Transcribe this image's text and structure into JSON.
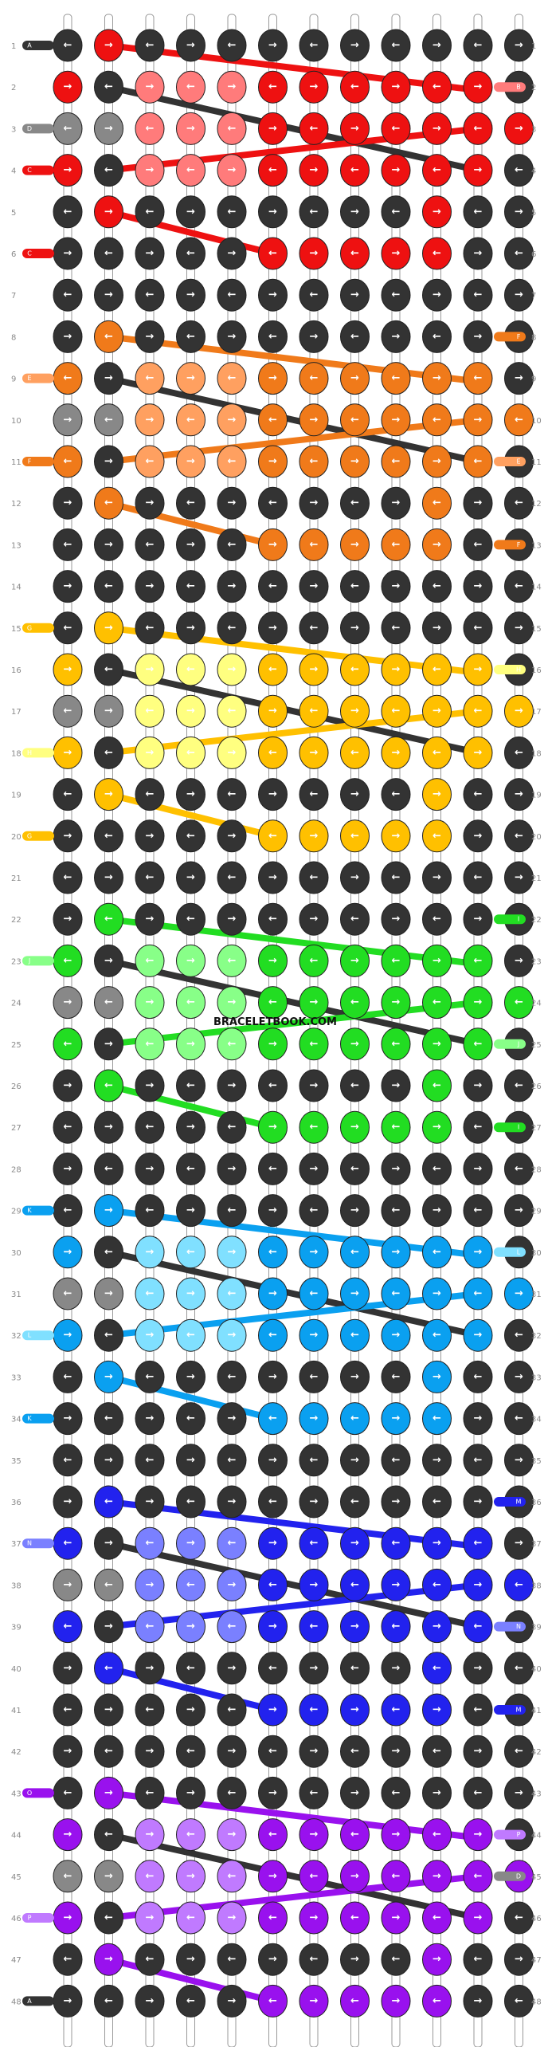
{
  "watermark": "BRACELETBOOK.COM",
  "arrow_glyphs": {
    "right": "→",
    "left": "←"
  },
  "colors": {
    "background": "#333333",
    "strand_grey": "#888888",
    "red": "#ee1111",
    "salmon": "#ff7b7b",
    "orange": "#f07a1a",
    "light_orange": "#ffa060",
    "gold": "#ffc000",
    "light_yellow": "#ffff80",
    "green": "#22dd22",
    "light_green": "#88ff88",
    "blue": "#0aa0f0",
    "light_blue": "#80e0ff",
    "royal_blue": "#2222ee",
    "periwinkle": "#7a80ff",
    "purple": "#9911ee",
    "lavender": "#c07aff"
  },
  "strands": [
    {
      "letter": "A",
      "color": "background"
    },
    {
      "letter": "B",
      "color": "salmon"
    },
    {
      "letter": "C",
      "color": "red"
    },
    {
      "letter": "D",
      "color": "strand_grey"
    },
    {
      "letter": "E",
      "color": "light_orange"
    },
    {
      "letter": "F",
      "color": "orange"
    },
    {
      "letter": "G",
      "color": "gold"
    },
    {
      "letter": "H",
      "color": "light_yellow"
    },
    {
      "letter": "I",
      "color": "green"
    },
    {
      "letter": "J",
      "color": "light_green"
    },
    {
      "letter": "K",
      "color": "blue"
    },
    {
      "letter": "L",
      "color": "light_blue"
    },
    {
      "letter": "M",
      "color": "royal_blue"
    },
    {
      "letter": "N",
      "color": "periwinkle"
    },
    {
      "letter": "O",
      "color": "purple"
    },
    {
      "letter": "P",
      "color": "lavender"
    }
  ],
  "left_end_labels": {
    "1": "A",
    "3": "D",
    "4": "C",
    "6": "C",
    "9": "E",
    "11": "F",
    "15": "G",
    "18": "H",
    "20": "G",
    "23": "J",
    "29": "K",
    "32": "L",
    "34": "K",
    "37": "N",
    "43": "O",
    "46": "P",
    "48": "A"
  },
  "right_end_labels": {
    "2": "B",
    "8": "F",
    "11": "E",
    "13": "F",
    "16": "H",
    "22": "I",
    "25": "J",
    "27": "I",
    "30": "L",
    "36": "M",
    "39": "N",
    "41": "M",
    "44": "P",
    "45": "D"
  },
  "rows": 48,
  "knot_grid_note": "",
  "bands": [
    {
      "start": 1,
      "main": "red",
      "light": "salmon"
    },
    {
      "start": 8,
      "main": "orange",
      "light": "light_orange"
    },
    {
      "start": 15,
      "main": "gold",
      "light": "light_yellow"
    },
    {
      "start": 22,
      "main": "green",
      "light": "light_green"
    },
    {
      "start": 29,
      "main": "blue",
      "light": "light_blue"
    },
    {
      "start": 36,
      "main": "royal_blue",
      "light": "periwinkle"
    },
    {
      "start": 43,
      "main": "purple",
      "light": "lavender"
    }
  ]
}
